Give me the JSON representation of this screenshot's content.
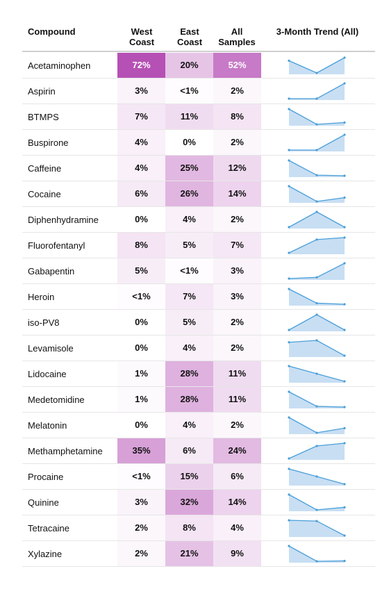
{
  "chart_data": {
    "type": "table",
    "columns": [
      "Compound",
      "West Coast",
      "East Coast",
      "All Samples",
      "3-Month Trend (All)"
    ],
    "rows": [
      {
        "compound": "Acetaminophen",
        "west": "72%",
        "east": "20%",
        "all": "52%",
        "west_v": 72,
        "east_v": 20,
        "all_v": 52,
        "trend": [
          0.62,
          0.46,
          0.66
        ]
      },
      {
        "compound": "Aspirin",
        "west": "3%",
        "east": "<1%",
        "all": "2%",
        "west_v": 3,
        "east_v": 0.5,
        "all_v": 2,
        "trend": [
          1.0,
          1.0,
          3.3
        ]
      },
      {
        "compound": "BTMPS",
        "west": "7%",
        "east": "11%",
        "all": "8%",
        "west_v": 7,
        "east_v": 11,
        "all_v": 8,
        "trend": [
          12.0,
          7.0,
          7.6
        ]
      },
      {
        "compound": "Buspirone",
        "west": "4%",
        "east": "0%",
        "all": "2%",
        "west_v": 4,
        "east_v": 0,
        "all_v": 2,
        "trend": [
          1.0,
          1.0,
          3.3
        ]
      },
      {
        "compound": "Caffeine",
        "west": "4%",
        "east": "25%",
        "all": "12%",
        "west_v": 4,
        "east_v": 25,
        "all_v": 12,
        "trend": [
          16.0,
          11.0,
          10.8
        ]
      },
      {
        "compound": "Cocaine",
        "west": "6%",
        "east": "26%",
        "all": "14%",
        "west_v": 6,
        "east_v": 26,
        "all_v": 14,
        "trend": [
          17.0,
          13.0,
          14.0
        ]
      },
      {
        "compound": "Diphenhydramine",
        "west": "0%",
        "east": "4%",
        "all": "2%",
        "west_v": 0,
        "east_v": 4,
        "all_v": 2,
        "trend": [
          1.0,
          2.1,
          1.0
        ]
      },
      {
        "compound": "Fluorofentanyl",
        "west": "8%",
        "east": "5%",
        "all": "7%",
        "west_v": 8,
        "east_v": 5,
        "all_v": 7,
        "trend": [
          5.0,
          7.0,
          7.3
        ]
      },
      {
        "compound": "Gabapentin",
        "west": "5%",
        "east": "<1%",
        "all": "3%",
        "west_v": 5,
        "east_v": 0.5,
        "all_v": 3,
        "trend": [
          2.0,
          2.1,
          3.3
        ]
      },
      {
        "compound": "Heroin",
        "west": "<1%",
        "east": "7%",
        "all": "3%",
        "west_v": 0.5,
        "east_v": 7,
        "all_v": 3,
        "trend": [
          4.0,
          2.7,
          2.6
        ]
      },
      {
        "compound": "iso-PV8",
        "west": "0%",
        "east": "5%",
        "all": "2%",
        "west_v": 0,
        "east_v": 5,
        "all_v": 2,
        "trend": [
          1.0,
          2.1,
          1.0
        ]
      },
      {
        "compound": "Levamisole",
        "west": "0%",
        "east": "4%",
        "all": "2%",
        "west_v": 0,
        "east_v": 4,
        "all_v": 2,
        "trend": [
          2.7,
          2.8,
          2.0
        ]
      },
      {
        "compound": "Lidocaine",
        "west": "1%",
        "east": "28%",
        "all": "11%",
        "west_v": 1,
        "east_v": 28,
        "all_v": 11,
        "trend": [
          13.0,
          11.0,
          9.0
        ]
      },
      {
        "compound": "Medetomidine",
        "west": "1%",
        "east": "28%",
        "all": "11%",
        "west_v": 1,
        "east_v": 28,
        "all_v": 11,
        "trend": [
          14.0,
          10.0,
          9.8
        ]
      },
      {
        "compound": "Melatonin",
        "west": "0%",
        "east": "4%",
        "all": "2%",
        "west_v": 0,
        "east_v": 4,
        "all_v": 2,
        "trend": [
          2.6,
          1.6,
          1.9
        ]
      },
      {
        "compound": "Methamphetamine",
        "west": "35%",
        "east": "6%",
        "all": "24%",
        "west_v": 35,
        "east_v": 6,
        "all_v": 24,
        "trend": [
          19.0,
          23.5,
          24.5
        ]
      },
      {
        "compound": "Procaine",
        "west": "<1%",
        "east": "15%",
        "all": "6%",
        "west_v": 0.5,
        "east_v": 15,
        "all_v": 6,
        "trend": [
          8.0,
          6.5,
          5.0
        ]
      },
      {
        "compound": "Quinine",
        "west": "3%",
        "east": "32%",
        "all": "14%",
        "west_v": 3,
        "east_v": 32,
        "all_v": 14,
        "trend": [
          19.0,
          13.0,
          14.0
        ]
      },
      {
        "compound": "Tetracaine",
        "west": "2%",
        "east": "8%",
        "all": "4%",
        "west_v": 2,
        "east_v": 8,
        "all_v": 4,
        "trend": [
          5.0,
          4.9,
          3.0
        ]
      },
      {
        "compound": "Xylazine",
        "west": "2%",
        "east": "21%",
        "all": "9%",
        "west_v": 2,
        "east_v": 21,
        "all_v": 9,
        "trend": [
          12.0,
          8.0,
          8.1
        ]
      }
    ],
    "colors": {
      "heat_low": "#ffffff",
      "heat_high": "#b550b5",
      "spark_line": "#4a9fd8",
      "spark_fill": "#c8def3"
    }
  }
}
